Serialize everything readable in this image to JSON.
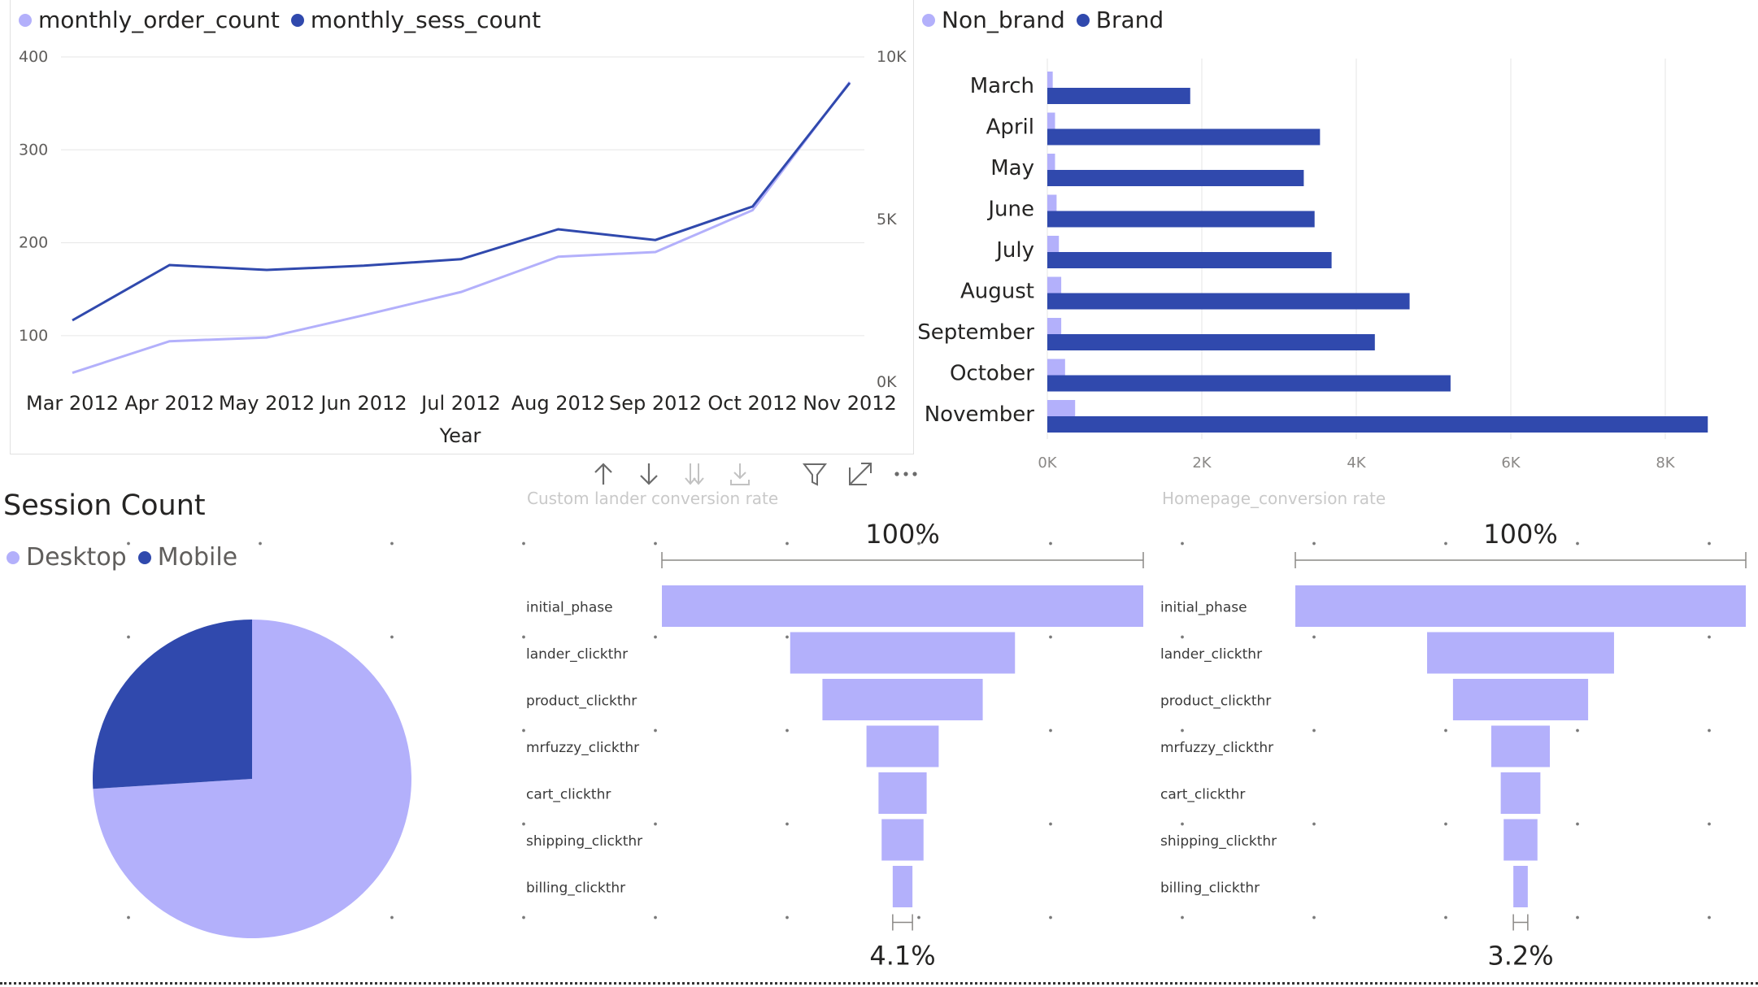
{
  "colors": {
    "light": "#B3B0FB",
    "dark": "#3049AD",
    "axis": "#605E5C",
    "grid": "#E6E6E6"
  },
  "line_chart": {
    "legend": [
      {
        "name": "monthly_order_count",
        "color": "#B3B0FB"
      },
      {
        "name": "monthly_sess_count",
        "color": "#3049AD"
      }
    ]
  },
  "bar_chart": {
    "legend": [
      {
        "name": "Non_brand",
        "color": "#B3B0FB"
      },
      {
        "name": "Brand",
        "color": "#3049AD"
      }
    ]
  },
  "pie_section": {
    "title": "Session Count",
    "legend": [
      {
        "name": "Desktop",
        "color": "#B3B0FB"
      },
      {
        "name": "Mobile",
        "color": "#3049AD"
      }
    ]
  },
  "toolbar": {
    "icons": [
      "arrow-up-icon",
      "arrow-down-icon",
      "double-arrow-down-icon",
      "expand-hierarchy-icon",
      "filter-icon",
      "focus-mode-icon",
      "more-options-icon"
    ]
  },
  "funnel_titles": {
    "left": "Custom lander conversion rate",
    "right": "Homepage_conversion rate"
  },
  "chart_data": [
    {
      "type": "line",
      "x": [
        "Mar 2012",
        "Apr 2012",
        "May 2012",
        "Jun 2012",
        "Jul 2012",
        "Aug 2012",
        "Sep 2012",
        "Oct 2012",
        "Nov 2012"
      ],
      "xlabel": "Year",
      "y_left": {
        "ticks": [
          "100",
          "200",
          "300",
          "400"
        ],
        "range": [
          50,
          400
        ]
      },
      "y_right": {
        "ticks": [
          "0K",
          "5K",
          "10K"
        ],
        "range": [
          0,
          10000
        ]
      },
      "series": [
        {
          "name": "monthly_order_count",
          "axis": "left",
          "values": [
            60,
            94,
            98,
            122,
            147,
            185,
            190,
            235,
            373
          ]
        },
        {
          "name": "monthly_sess_count",
          "axis": "right",
          "values": [
            1900,
            3600,
            3450,
            3580,
            3780,
            4700,
            4370,
            5400,
            9200
          ]
        }
      ],
      "grid": true
    },
    {
      "type": "bar",
      "orientation": "horizontal",
      "categories": [
        "March",
        "April",
        "May",
        "June",
        "July",
        "August",
        "September",
        "October",
        "November"
      ],
      "series": [
        {
          "name": "Non_brand",
          "values": [
            70,
            100,
            100,
            120,
            150,
            180,
            180,
            230,
            360
          ]
        },
        {
          "name": "Brand",
          "values": [
            1850,
            3530,
            3320,
            3460,
            3680,
            4690,
            4240,
            5220,
            8550
          ]
        }
      ],
      "x_ticks": [
        "0K",
        "2K",
        "4K",
        "6K",
        "8K"
      ],
      "xlim": [
        0,
        9000
      ],
      "grid": true
    },
    {
      "type": "pie",
      "title": "Session Count",
      "slices": [
        {
          "name": "Desktop",
          "value": 74
        },
        {
          "name": "Mobile",
          "value": 26
        }
      ]
    },
    {
      "type": "bar",
      "subtype": "funnel",
      "title": "Custom lander conversion rate",
      "categories": [
        "initial_phase",
        "lander_clickthr",
        "product_clickthr",
        "mrfuzzy_clickthr",
        "cart_clickthr",
        "shipping_clickthr",
        "billing_clickthr"
      ],
      "values": [
        100,
        46.7,
        33.3,
        15.0,
        10.0,
        8.7,
        4.1
      ],
      "top_label": "100%",
      "bottom_label": "4.1%"
    },
    {
      "type": "bar",
      "subtype": "funnel",
      "title": "Homepage_conversion rate",
      "categories": [
        "initial_phase",
        "lander_clickthr",
        "product_clickthr",
        "mrfuzzy_clickthr",
        "cart_clickthr",
        "shipping_clickthr",
        "billing_clickthr"
      ],
      "values": [
        100,
        41.5,
        30.0,
        13.0,
        8.8,
        7.5,
        3.2
      ],
      "top_label": "100%",
      "bottom_label": "3.2%"
    }
  ]
}
